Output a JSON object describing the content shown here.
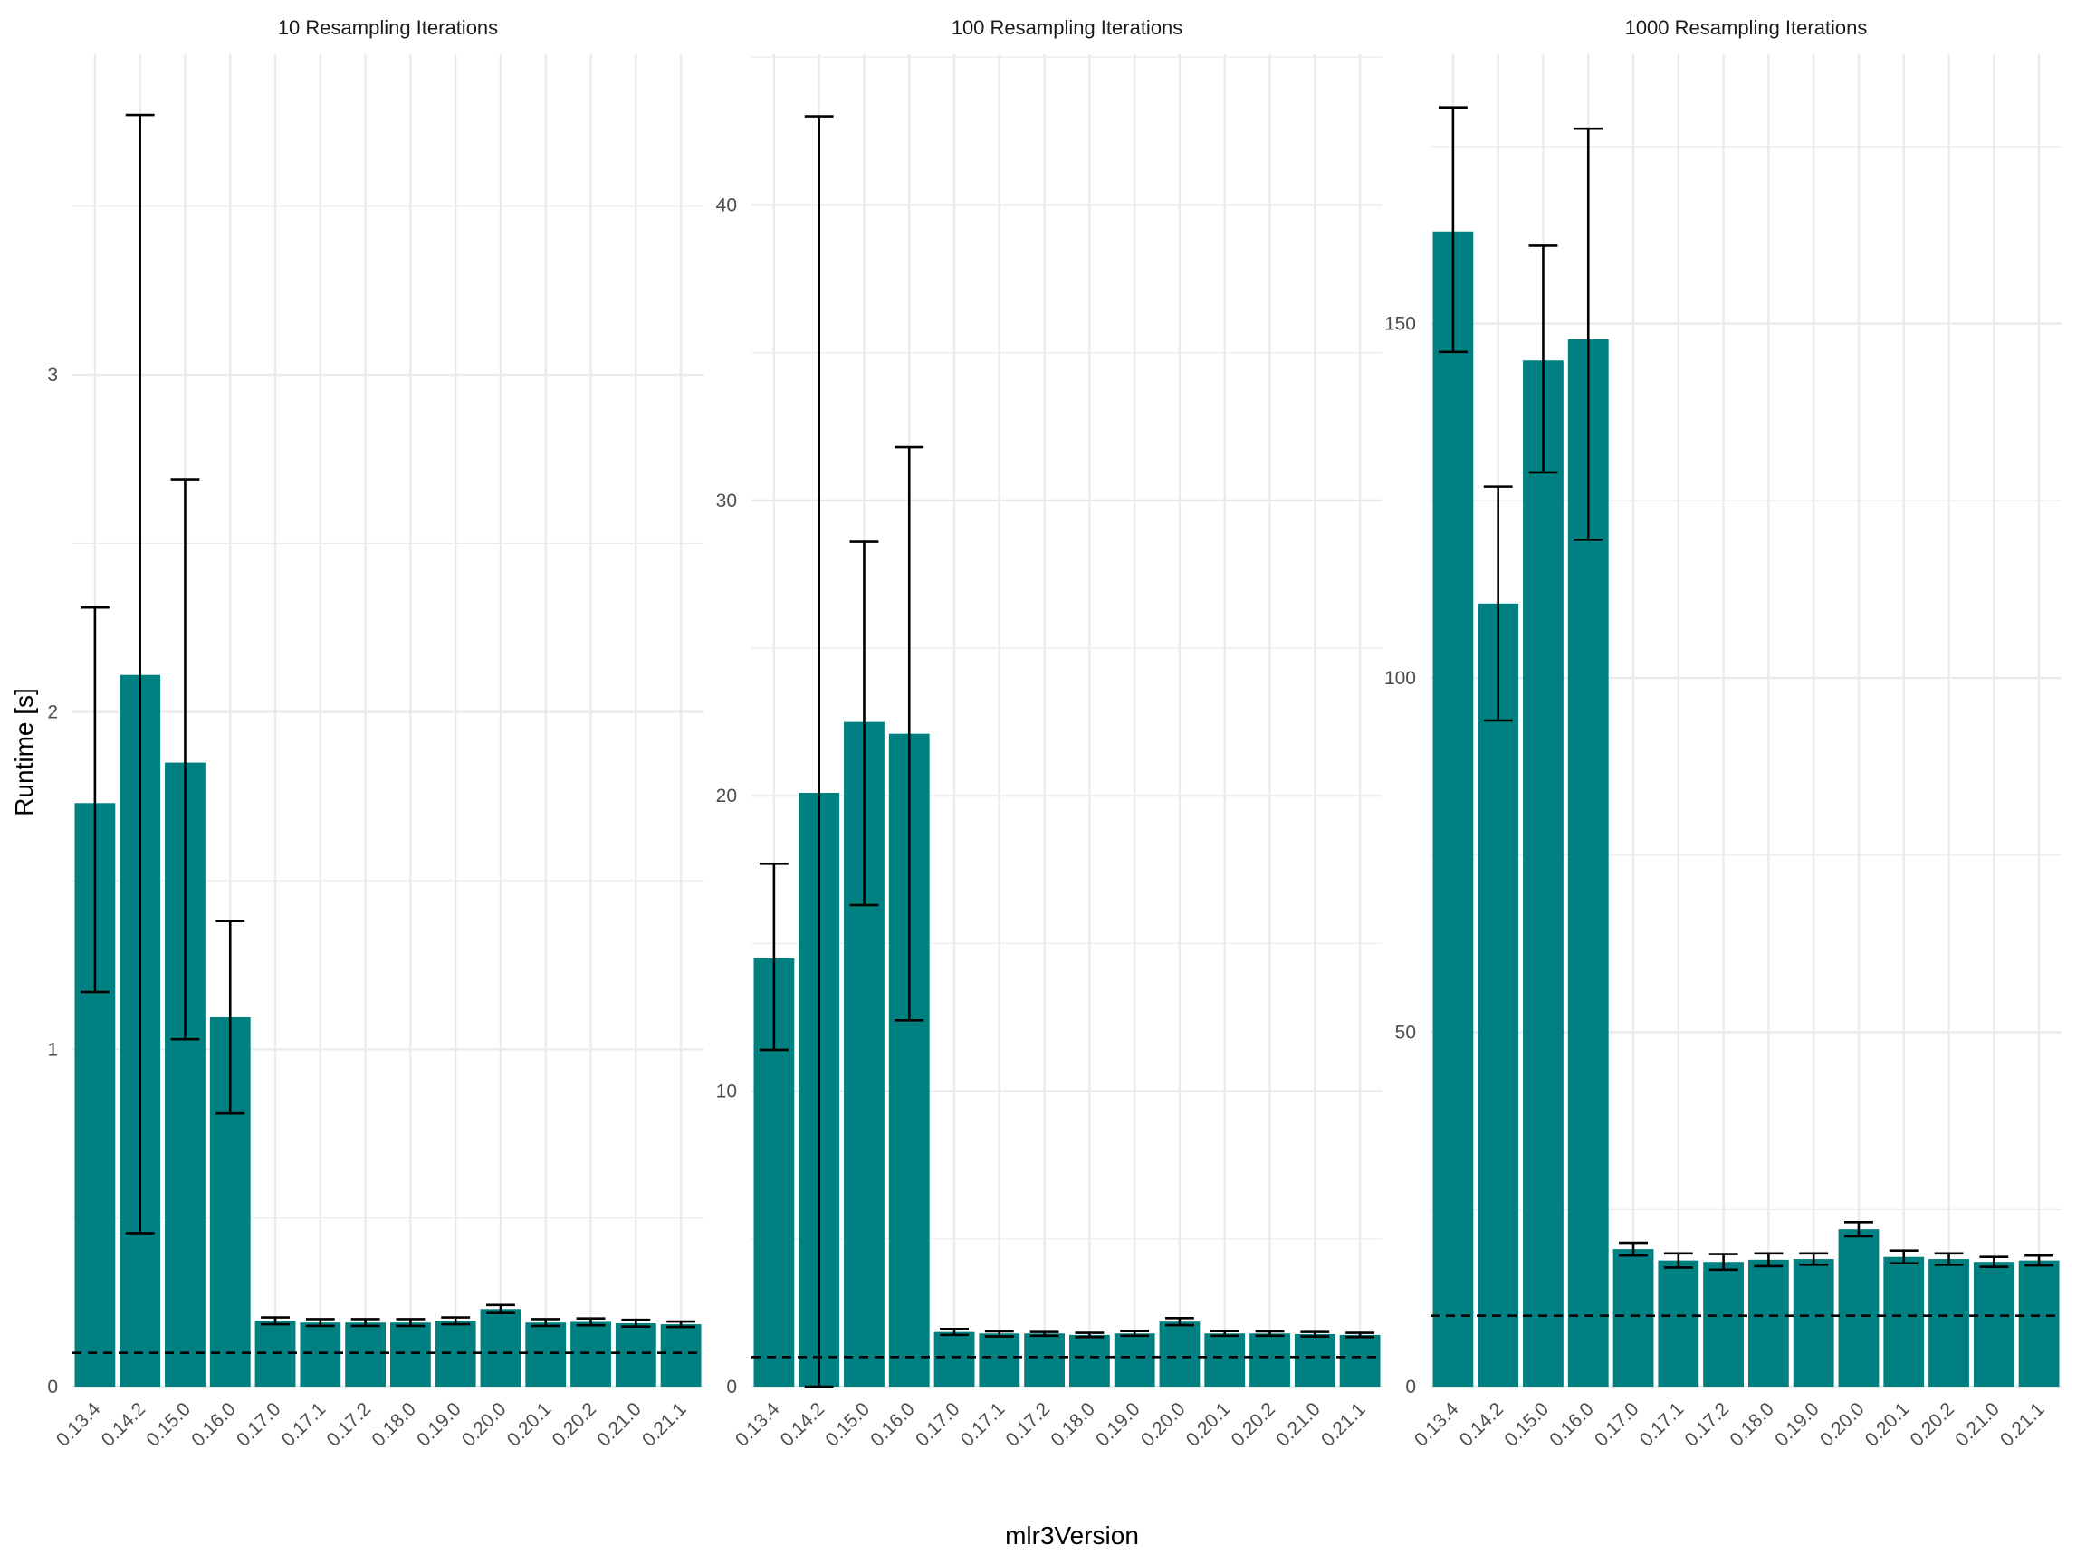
{
  "figure": {
    "ylabel": "Runtime [s]",
    "xlabel": "mlr3Version",
    "colors": {
      "bar": "#008080",
      "grid": "#ebebeb",
      "error_bar": "#000000",
      "reference_line": "#000000"
    }
  },
  "chart_data": [
    {
      "type": "bar",
      "title": "10 Resampling Iterations",
      "categories": [
        "0.13.4",
        "0.14.2",
        "0.15.0",
        "0.16.0",
        "0.17.0",
        "0.17.1",
        "0.17.2",
        "0.18.0",
        "0.19.0",
        "0.20.0",
        "0.20.1",
        "0.20.2",
        "0.21.0",
        "0.21.1"
      ],
      "values": [
        1.73,
        2.11,
        1.85,
        1.095,
        0.195,
        0.19,
        0.19,
        0.19,
        0.195,
        0.23,
        0.19,
        0.192,
        0.188,
        0.185
      ],
      "error_low": [
        1.17,
        0.455,
        1.03,
        0.81,
        0.185,
        0.18,
        0.18,
        0.18,
        0.185,
        0.218,
        0.18,
        0.182,
        0.178,
        0.177
      ],
      "error_high": [
        2.31,
        3.77,
        2.69,
        1.38,
        0.205,
        0.2,
        0.2,
        0.2,
        0.205,
        0.242,
        0.2,
        0.202,
        0.198,
        0.193
      ],
      "reference_line": 0.1,
      "ylim": [
        0,
        3.95
      ],
      "yticks": [
        0,
        1,
        2,
        3
      ],
      "ytick_labels": [
        "0",
        "1",
        "2",
        "3"
      ],
      "grid": true,
      "legend": "none"
    },
    {
      "type": "bar",
      "title": "100 Resampling Iterations",
      "categories": [
        "0.13.4",
        "0.14.2",
        "0.15.0",
        "0.16.0",
        "0.17.0",
        "0.17.1",
        "0.17.2",
        "0.18.0",
        "0.19.0",
        "0.20.0",
        "0.20.1",
        "0.20.2",
        "0.21.0",
        "0.21.1"
      ],
      "values": [
        14.5,
        20.1,
        22.5,
        22.1,
        1.85,
        1.8,
        1.8,
        1.75,
        1.8,
        2.2,
        1.8,
        1.8,
        1.78,
        1.75
      ],
      "error_low": [
        11.4,
        0.0,
        16.3,
        12.4,
        1.75,
        1.7,
        1.72,
        1.68,
        1.72,
        2.08,
        1.72,
        1.72,
        1.7,
        1.68
      ],
      "error_high": [
        17.7,
        43.0,
        28.6,
        31.8,
        1.95,
        1.87,
        1.85,
        1.82,
        1.88,
        2.32,
        1.88,
        1.87,
        1.85,
        1.82
      ],
      "reference_line": 1.0,
      "ylim": [
        0,
        45.1
      ],
      "yticks": [
        0,
        10,
        20,
        30,
        40
      ],
      "ytick_labels": [
        "0",
        "10",
        "20",
        "30",
        "40"
      ],
      "grid": true,
      "legend": "none"
    },
    {
      "type": "bar",
      "title": "1000 Resampling Iterations",
      "categories": [
        "0.13.4",
        "0.14.2",
        "0.15.0",
        "0.16.0",
        "0.17.0",
        "0.17.1",
        "0.17.2",
        "0.18.0",
        "0.19.0",
        "0.20.0",
        "0.20.1",
        "0.20.2",
        "0.21.0",
        "0.21.1"
      ],
      "values": [
        163,
        110.5,
        144.8,
        147.8,
        19.4,
        17.8,
        17.6,
        17.9,
        18.0,
        22.2,
        18.3,
        18.0,
        17.6,
        17.8
      ],
      "error_low": [
        146,
        94.0,
        129.0,
        119.5,
        18.5,
        16.8,
        16.5,
        17.0,
        17.2,
        21.2,
        17.4,
        17.2,
        16.9,
        17.1
      ],
      "error_high": [
        180.5,
        127.0,
        161.0,
        177.5,
        20.3,
        18.8,
        18.7,
        18.8,
        18.8,
        23.2,
        19.2,
        18.8,
        18.3,
        18.5
      ],
      "reference_line": 10,
      "ylim": [
        0,
        188
      ],
      "yticks": [
        0,
        50,
        100,
        150
      ],
      "ytick_labels": [
        "0",
        "50",
        "100",
        "150"
      ],
      "grid": true,
      "legend": "none"
    }
  ]
}
